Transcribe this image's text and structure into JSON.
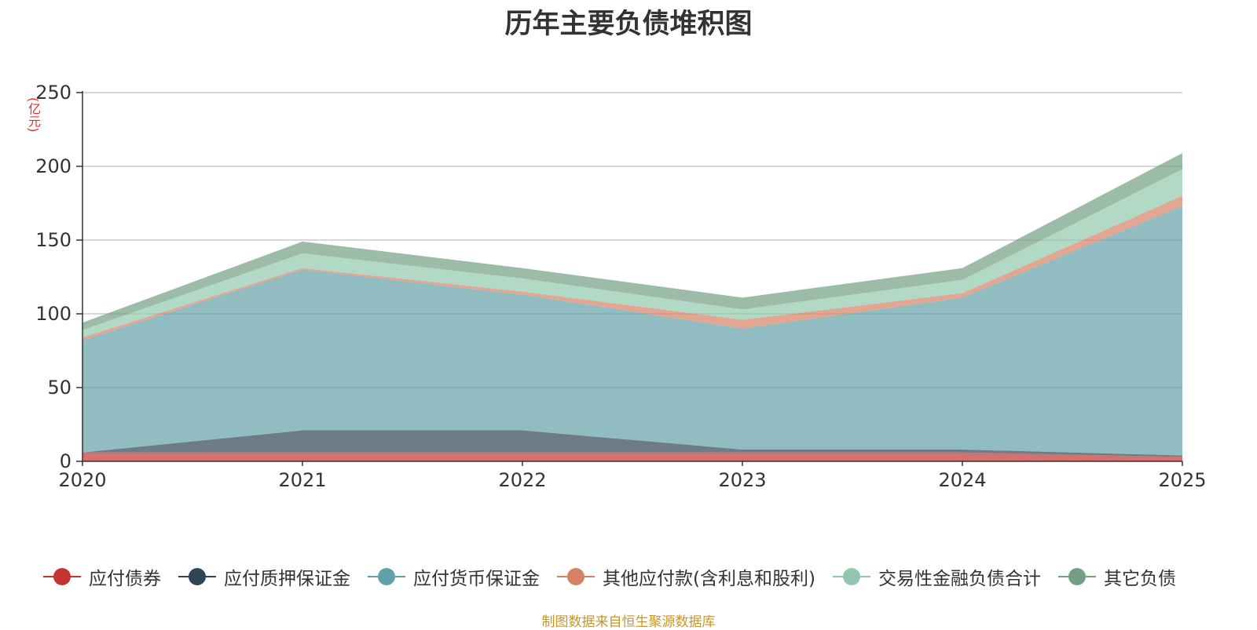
{
  "title": "历年主要负债堆积图",
  "source": "制图数据来自恒生聚源数据库",
  "chart_data": {
    "type": "area",
    "stacked": true,
    "title": "历年主要负债堆积图",
    "unit": "(亿元)",
    "categories": [
      "2020",
      "2021",
      "2022",
      "2023",
      "2024",
      "2025"
    ],
    "ylim": [
      0,
      250
    ],
    "yticks": [
      0,
      50,
      100,
      150,
      200,
      250
    ],
    "grid": true,
    "legend_position": "bottom",
    "series": [
      {
        "name": "应付债券",
        "color": "#c23531",
        "values": [
          6,
          6,
          6,
          6,
          6,
          3
        ]
      },
      {
        "name": "应付质押保证金",
        "color": "#2f4554",
        "values": [
          0,
          15,
          15,
          2,
          2,
          1
        ]
      },
      {
        "name": "应付货币保证金",
        "color": "#61a0a8",
        "values": [
          76,
          109,
          92,
          82,
          103,
          169
        ]
      },
      {
        "name": "其他应付款(含利息和股利)",
        "color": "#d48265",
        "values": [
          2,
          1,
          2,
          6,
          3,
          7
        ]
      },
      {
        "name": "交易性金融负债合计",
        "color": "#91c7ae",
        "values": [
          5,
          10,
          9,
          7,
          9,
          18
        ]
      },
      {
        "name": "其它负债",
        "color": "#749f83",
        "values": [
          5,
          8,
          7,
          8,
          8,
          11
        ]
      }
    ]
  }
}
